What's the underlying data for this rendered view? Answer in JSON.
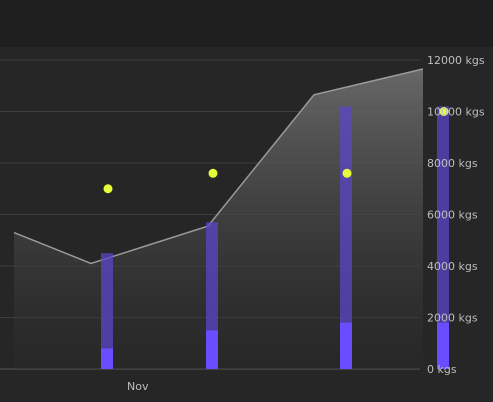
{
  "chart_data": {
    "type": "bar",
    "title": "",
    "xlabel": "",
    "ylabel": "",
    "x_tick_labels": [
      {
        "label": "Nov",
        "x": 3
      }
    ],
    "y_unit": "kgs",
    "ylim": [
      0,
      12000
    ],
    "y_ticks": [
      0,
      2000,
      4000,
      6000,
      8000,
      10000,
      12000
    ],
    "y_tick_labels": [
      "0 kgs",
      "2000 kgs",
      "4000 kgs",
      "6000 kgs",
      "8000 kgs",
      "10000 kgs",
      "12000 kgs"
    ],
    "grid": true,
    "legend": "none",
    "area_series": {
      "color": "#9a9a9a",
      "x": [
        0,
        1.9,
        4.8,
        7.4,
        10.1
      ],
      "values": [
        5300,
        4100,
        5550,
        10650,
        11650
      ]
    },
    "bar_series_total": {
      "color": "#5b45c8",
      "x": [
        2.3,
        4.9,
        8.2,
        10.6
      ],
      "values": [
        4500,
        5700,
        10200,
        10200
      ]
    },
    "bar_series_inner": {
      "color": "#6a4dff",
      "x": [
        2.3,
        4.9,
        8.2,
        10.6
      ],
      "values": [
        800,
        1500,
        1800,
        1800
      ]
    },
    "point_series": {
      "color": "#e4ff3a",
      "x": [
        2.3,
        4.9,
        8.2,
        10.6
      ],
      "values": [
        7000,
        7600,
        7600,
        10000
      ]
    }
  }
}
